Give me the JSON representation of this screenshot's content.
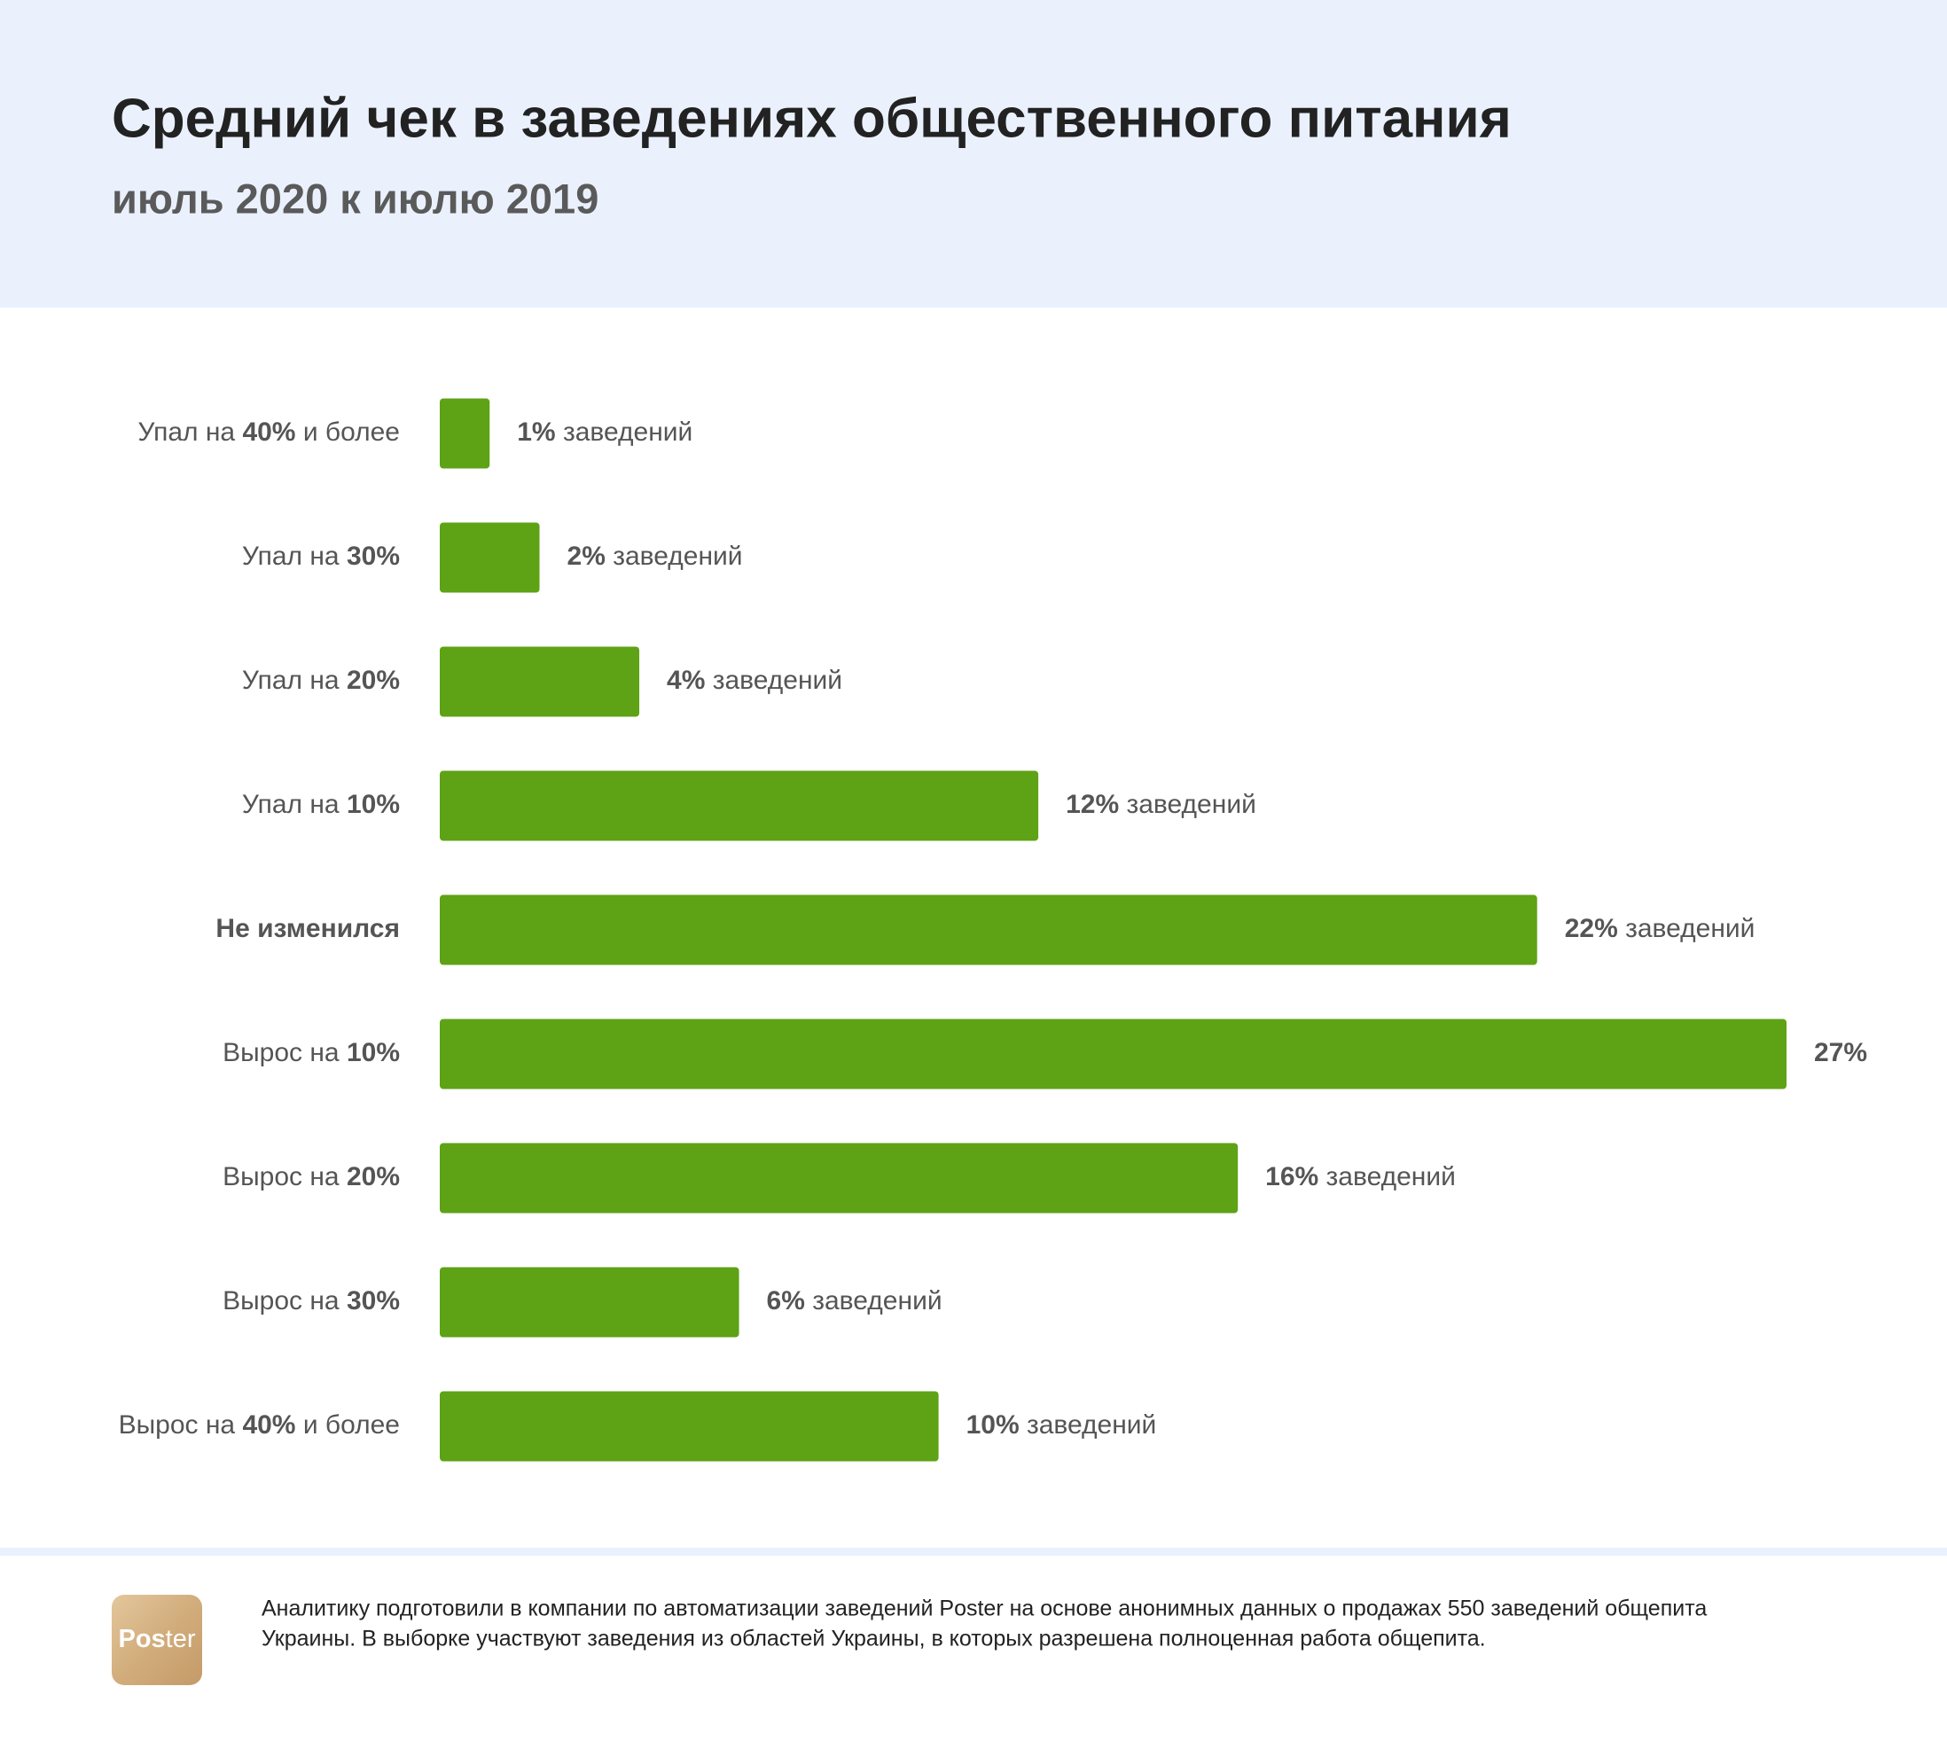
{
  "chart_data": {
    "type": "bar",
    "orientation": "horizontal",
    "title": "Средний чек в заведениях общественного питания",
    "subtitle": "июль 2020 к июлю 2019",
    "categories": [
      "Упал на 40% и более",
      "Упал на 30%",
      "Упал на 20%",
      "Упал на 10%",
      "Не изменился",
      "Вырос на 10%",
      "Вырос на 20%",
      "Вырос на 30%",
      "Вырос на 40% и более"
    ],
    "values": [
      1,
      2,
      4,
      12,
      22,
      27,
      16,
      6,
      10
    ],
    "value_labels": [
      "1% заведений",
      "2% заведений",
      "4% заведений",
      "12% заведений",
      "22% заведений",
      "27%",
      "16% заведений",
      "6% заведений",
      "10% заведений"
    ],
    "color": "#5ea215",
    "logo": "Poster",
    "source": [
      "Аналитику подготовили в компании по автоматизации заведений Poster на основе анонимных данных о продажах 550 заведений общепита",
      "Украины. В выборке участвуют заведения из областей Украины, в которых разрешена полноценная работа общепита."
    ]
  }
}
